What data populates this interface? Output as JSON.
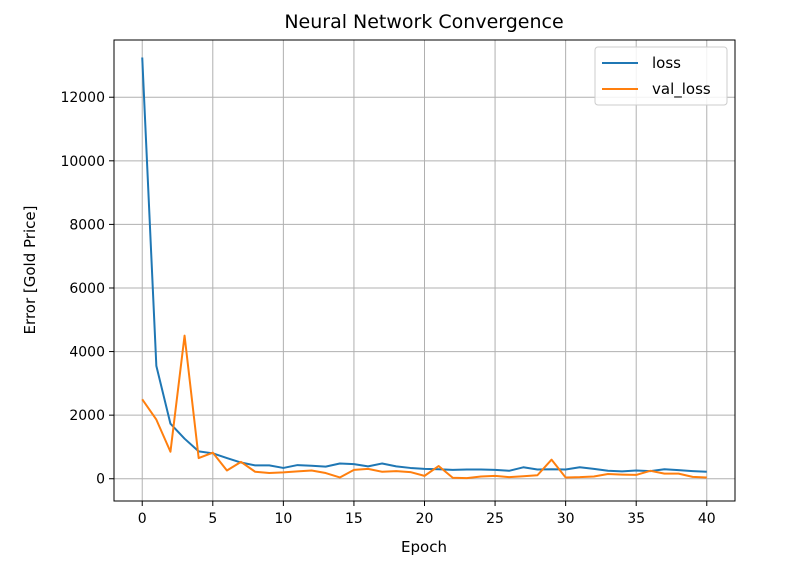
{
  "chart_data": {
    "type": "line",
    "title": "Neural Network Convergence",
    "xlabel": "Epoch",
    "ylabel": "Error [Gold Price]",
    "xlim": [
      -2,
      42
    ],
    "ylim": [
      -700,
      13800
    ],
    "xticks": [
      0,
      5,
      10,
      15,
      20,
      25,
      30,
      35,
      40
    ],
    "yticks": [
      0,
      2000,
      4000,
      6000,
      8000,
      10000,
      12000
    ],
    "grid": true,
    "legend_position": "top-right",
    "x": [
      0,
      1,
      2,
      3,
      4,
      5,
      6,
      7,
      8,
      9,
      10,
      11,
      12,
      13,
      14,
      15,
      16,
      17,
      18,
      19,
      20,
      21,
      22,
      23,
      24,
      25,
      26,
      27,
      28,
      29,
      30,
      31,
      32,
      33,
      34,
      35,
      36,
      37,
      38,
      39,
      40
    ],
    "series": [
      {
        "name": "loss",
        "color": "#1f77b4",
        "values": [
          13250,
          3550,
          1730,
          1260,
          860,
          800,
          650,
          510,
          420,
          420,
          340,
          430,
          410,
          380,
          480,
          460,
          390,
          480,
          390,
          340,
          310,
          300,
          280,
          290,
          290,
          280,
          250,
          360,
          290,
          300,
          290,
          360,
          310,
          250,
          230,
          260,
          240,
          300,
          270,
          240,
          220
        ]
      },
      {
        "name": "val_loss",
        "color": "#ff7f0e",
        "values": [
          2500,
          1860,
          850,
          4500,
          650,
          820,
          260,
          530,
          220,
          180,
          200,
          230,
          260,
          180,
          40,
          280,
          310,
          220,
          240,
          210,
          90,
          400,
          30,
          20,
          70,
          90,
          50,
          80,
          110,
          600,
          40,
          50,
          70,
          150,
          130,
          120,
          250,
          160,
          160,
          60,
          40
        ]
      }
    ]
  }
}
